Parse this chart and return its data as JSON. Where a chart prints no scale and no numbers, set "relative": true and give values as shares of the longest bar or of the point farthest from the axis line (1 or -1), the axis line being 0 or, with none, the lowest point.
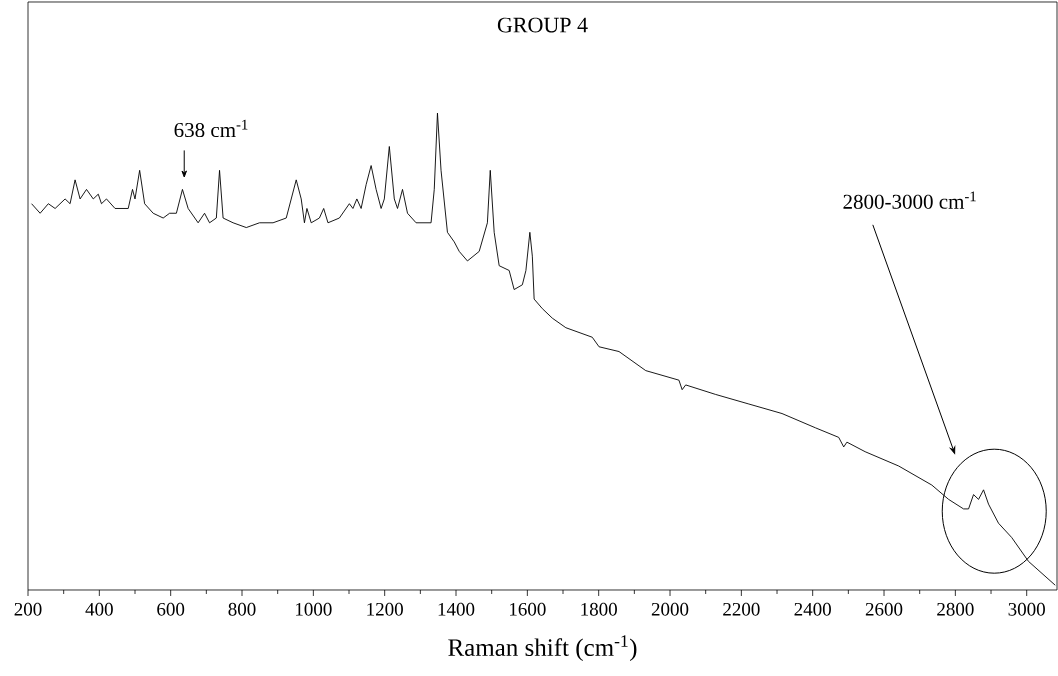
{
  "chart_data": {
    "type": "line",
    "title": "GROUP 4",
    "xlabel": "Raman shift (cm$^{-1}$)",
    "relative": true,
    "color": "#000000",
    "xlim": [
      200,
      3085
    ],
    "xticks": [
      200,
      400,
      600,
      800,
      1000,
      1200,
      1400,
      1600,
      1800,
      2000,
      2200,
      2400,
      2600,
      2800,
      3000
    ],
    "x": [
      210,
      234,
      257,
      276,
      304,
      318,
      332,
      346,
      364,
      383,
      397,
      406,
      420,
      444,
      481,
      493,
      500,
      513,
      527,
      551,
      579,
      597,
      616,
      633,
      649,
      677,
      695,
      709,
      728,
      737,
      747,
      775,
      812,
      849,
      887,
      924,
      938,
      952,
      966,
      975,
      982,
      994,
      1017,
      1029,
      1041,
      1073,
      1101,
      1111,
      1122,
      1134,
      1148,
      1162,
      1176,
      1190,
      1199,
      1213,
      1227,
      1236,
      1250,
      1264,
      1288,
      1316,
      1330,
      1339,
      1348,
      1358,
      1376,
      1395,
      1409,
      1432,
      1465,
      1488,
      1496,
      1507,
      1521,
      1549,
      1563,
      1586,
      1596,
      1607,
      1614,
      1619,
      1642,
      1670,
      1708,
      1782,
      1801,
      1857,
      1932,
      2025,
      2034,
      2044,
      2128,
      2221,
      2314,
      2408,
      2473,
      2487,
      2496,
      2547,
      2641,
      2734,
      2781,
      2823,
      2837,
      2851,
      2865,
      2879,
      2893,
      2921,
      2958,
      3005,
      3080
    ],
    "values": [
      0.81,
      0.79,
      0.81,
      0.8,
      0.82,
      0.81,
      0.86,
      0.82,
      0.84,
      0.82,
      0.83,
      0.81,
      0.82,
      0.8,
      0.8,
      0.84,
      0.82,
      0.88,
      0.81,
      0.79,
      0.78,
      0.79,
      0.79,
      0.84,
      0.8,
      0.77,
      0.79,
      0.77,
      0.78,
      0.88,
      0.78,
      0.77,
      0.76,
      0.77,
      0.77,
      0.78,
      0.82,
      0.86,
      0.82,
      0.77,
      0.8,
      0.77,
      0.78,
      0.8,
      0.77,
      0.78,
      0.81,
      0.8,
      0.82,
      0.8,
      0.85,
      0.89,
      0.84,
      0.8,
      0.82,
      0.93,
      0.82,
      0.8,
      0.84,
      0.79,
      0.77,
      0.77,
      0.77,
      0.84,
      1.0,
      0.88,
      0.75,
      0.73,
      0.71,
      0.69,
      0.71,
      0.77,
      0.88,
      0.75,
      0.68,
      0.67,
      0.63,
      0.64,
      0.67,
      0.75,
      0.7,
      0.61,
      0.59,
      0.57,
      0.55,
      0.53,
      0.51,
      0.5,
      0.46,
      0.44,
      0.42,
      0.43,
      0.41,
      0.39,
      0.37,
      0.34,
      0.32,
      0.3,
      0.31,
      0.29,
      0.26,
      0.22,
      0.19,
      0.17,
      0.17,
      0.2,
      0.19,
      0.21,
      0.18,
      0.14,
      0.11,
      0.06,
      0.01
    ],
    "annotations": [
      {
        "text": "638 cm$^{-1}$",
        "x": 638,
        "y": 0.84
      },
      "2800-3000 cm$^{-1}$"
    ]
  }
}
